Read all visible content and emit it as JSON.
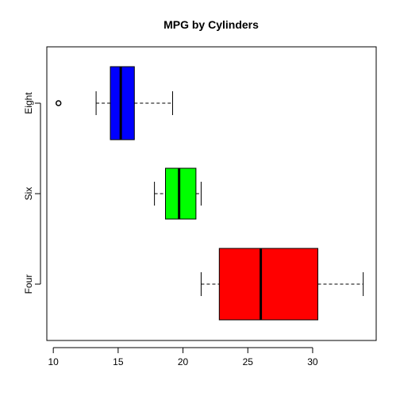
{
  "chart_data": {
    "type": "boxplot",
    "orientation": "horizontal",
    "title": "MPG by Cylinders",
    "xlabel": "",
    "ylabel": "",
    "xlim": [
      9.5,
      34.9
    ],
    "xticks": [
      10,
      15,
      20,
      25,
      30
    ],
    "grid": false,
    "legend": "none",
    "categories": [
      "Four",
      "Six",
      "Eight"
    ],
    "series": [
      {
        "category": "Four",
        "min": 21.4,
        "q1": 22.8,
        "median": 26.0,
        "q3": 30.4,
        "max": 33.9,
        "outliers": [],
        "color": "#ff0000"
      },
      {
        "category": "Six",
        "min": 17.8,
        "q1": 18.65,
        "median": 19.7,
        "q3": 21.0,
        "max": 21.4,
        "outliers": [],
        "color": "#00ff00"
      },
      {
        "category": "Eight",
        "min": 13.3,
        "q1": 14.4,
        "median": 15.2,
        "q3": 16.25,
        "max": 19.2,
        "outliers": [
          10.4
        ],
        "color": "#0000ff"
      }
    ]
  }
}
